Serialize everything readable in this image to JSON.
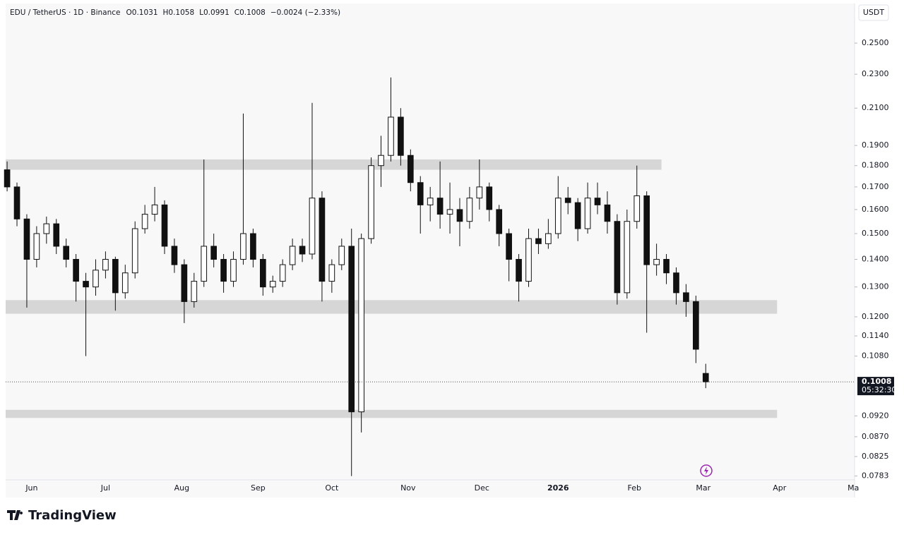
{
  "chart_data": {
    "type": "candlestick",
    "title": "EDU / TetherUS · 1D · Binance",
    "ohlc_text": [
      "O0.1031",
      "H0.1058",
      "L0.0991",
      "C0.1008",
      "−0.0024 (−2.33%)"
    ],
    "currency": "USDT",
    "countdown": "05:32:30",
    "brand": "TradingView",
    "log_scale": true,
    "up_color": "#ffffff",
    "down_color": "#111111",
    "wick_color": "#111111",
    "zone_color": "#d6d6d6",
    "xlim": [
      -10.6,
      334.5
    ],
    "ylim": [
      0.0775,
      0.278
    ],
    "xticks": [
      {
        "value": 0,
        "label": "Jun"
      },
      {
        "value": 30,
        "label": "Jul"
      },
      {
        "value": 61,
        "label": "Aug"
      },
      {
        "value": 92,
        "label": "Sep"
      },
      {
        "value": 122,
        "label": "Oct"
      },
      {
        "value": 153,
        "label": "Nov"
      },
      {
        "value": 183,
        "label": "Dec"
      },
      {
        "value": 214,
        "label": "2026"
      },
      {
        "value": 245,
        "label": "Feb"
      },
      {
        "value": 273,
        "label": "Mar"
      },
      {
        "value": 304,
        "label": "Apr"
      },
      {
        "value": 334,
        "label": "Ma"
      }
    ],
    "yticks": [
      {
        "value": 0.25,
        "label": "0.2500"
      },
      {
        "value": 0.23,
        "label": "0.2300"
      },
      {
        "value": 0.21,
        "label": "0.2100"
      },
      {
        "value": 0.19,
        "label": "0.1900"
      },
      {
        "value": 0.18,
        "label": "0.1800"
      },
      {
        "value": 0.17,
        "label": "0.1700"
      },
      {
        "value": 0.16,
        "label": "0.1600"
      },
      {
        "value": 0.15,
        "label": "0.1500"
      },
      {
        "value": 0.14,
        "label": "0.1400"
      },
      {
        "value": 0.13,
        "label": "0.1300"
      },
      {
        "value": 0.12,
        "label": "0.1200"
      },
      {
        "value": 0.114,
        "label": "0.1140"
      },
      {
        "value": 0.108,
        "label": "0.1080"
      },
      {
        "value": 0.092,
        "label": "0.0920"
      },
      {
        "value": 0.087,
        "label": "0.0870"
      },
      {
        "value": 0.0825,
        "label": "0.0825"
      },
      {
        "value": 0.0783,
        "label": "0.0783"
      }
    ],
    "zones": [
      {
        "low": 0.178,
        "high": 0.183,
        "x_end": 256
      },
      {
        "low": 0.121,
        "high": 0.1255,
        "x_end": 303
      },
      {
        "low": 0.0915,
        "high": 0.0935,
        "x_end": 303
      }
    ],
    "x": [
      -10,
      -6,
      -2,
      2,
      6,
      10,
      14,
      18,
      22,
      26,
      30,
      34,
      38,
      42,
      46,
      50,
      54,
      58,
      62,
      66,
      70,
      74,
      78,
      82,
      86,
      90,
      94,
      98,
      102,
      106,
      110,
      114,
      118,
      122,
      126,
      130,
      134,
      138,
      142,
      146,
      150,
      154,
      158,
      162,
      166,
      170,
      174,
      178,
      182,
      186,
      190,
      194,
      198,
      202,
      206,
      210,
      214,
      218,
      222,
      226,
      230,
      234,
      238,
      242,
      246,
      250,
      254,
      258,
      262,
      266,
      270,
      274
    ],
    "open": [
      0.178,
      0.17,
      0.156,
      0.14,
      0.15,
      0.154,
      0.145,
      0.14,
      0.132,
      0.13,
      0.136,
      0.14,
      0.128,
      0.135,
      0.152,
      0.158,
      0.162,
      0.145,
      0.138,
      0.125,
      0.132,
      0.145,
      0.14,
      0.132,
      0.14,
      0.15,
      0.14,
      0.13,
      0.132,
      0.138,
      0.145,
      0.142,
      0.165,
      0.132,
      0.138,
      0.145,
      0.093,
      0.148,
      0.18,
      0.185,
      0.205,
      0.185,
      0.172,
      0.162,
      0.165,
      0.158,
      0.16,
      0.155,
      0.165,
      0.17,
      0.16,
      0.15,
      0.14,
      0.132,
      0.148,
      0.146,
      0.15,
      0.165,
      0.163,
      0.152,
      0.165,
      0.162,
      0.155,
      0.128,
      0.155,
      0.166,
      0.138,
      0.14,
      0.135,
      0.128,
      0.125,
      0.1031
    ],
    "high": [
      0.182,
      0.172,
      0.158,
      0.153,
      0.157,
      0.156,
      0.148,
      0.142,
      0.135,
      0.14,
      0.143,
      0.141,
      0.138,
      0.155,
      0.162,
      0.17,
      0.164,
      0.148,
      0.14,
      0.135,
      0.183,
      0.15,
      0.142,
      0.143,
      0.207,
      0.152,
      0.142,
      0.134,
      0.14,
      0.148,
      0.148,
      0.213,
      0.168,
      0.14,
      0.148,
      0.152,
      0.15,
      0.184,
      0.195,
      0.228,
      0.21,
      0.188,
      0.175,
      0.17,
      0.182,
      0.172,
      0.165,
      0.17,
      0.183,
      0.172,
      0.162,
      0.152,
      0.142,
      0.152,
      0.152,
      0.156,
      0.175,
      0.17,
      0.165,
      0.172,
      0.172,
      0.168,
      0.158,
      0.16,
      0.18,
      0.168,
      0.146,
      0.142,
      0.137,
      0.131,
      0.127,
      0.1058
    ],
    "low": [
      0.168,
      0.153,
      0.123,
      0.137,
      0.146,
      0.142,
      0.137,
      0.125,
      0.108,
      0.127,
      0.133,
      0.122,
      0.126,
      0.133,
      0.15,
      0.155,
      0.142,
      0.135,
      0.118,
      0.123,
      0.13,
      0.137,
      0.128,
      0.13,
      0.138,
      0.137,
      0.127,
      0.128,
      0.13,
      0.136,
      0.139,
      0.14,
      0.125,
      0.128,
      0.136,
      0.0783,
      0.088,
      0.146,
      0.17,
      0.182,
      0.18,
      0.168,
      0.15,
      0.155,
      0.152,
      0.15,
      0.145,
      0.152,
      0.16,
      0.155,
      0.145,
      0.132,
      0.125,
      0.13,
      0.142,
      0.144,
      0.148,
      0.158,
      0.147,
      0.15,
      0.158,
      0.15,
      0.124,
      0.126,
      0.152,
      0.115,
      0.134,
      0.131,
      0.124,
      0.12,
      0.106,
      0.0991
    ],
    "close": [
      0.17,
      0.156,
      0.14,
      0.15,
      0.154,
      0.145,
      0.14,
      0.132,
      0.13,
      0.136,
      0.14,
      0.128,
      0.135,
      0.152,
      0.158,
      0.162,
      0.145,
      0.138,
      0.125,
      0.132,
      0.145,
      0.14,
      0.132,
      0.14,
      0.15,
      0.14,
      0.13,
      0.132,
      0.138,
      0.145,
      0.142,
      0.165,
      0.132,
      0.138,
      0.145,
      0.093,
      0.148,
      0.18,
      0.185,
      0.205,
      0.185,
      0.172,
      0.162,
      0.165,
      0.158,
      0.16,
      0.155,
      0.165,
      0.17,
      0.16,
      0.15,
      0.14,
      0.132,
      0.148,
      0.146,
      0.15,
      0.165,
      0.163,
      0.152,
      0.165,
      0.162,
      0.155,
      0.128,
      0.155,
      0.166,
      0.138,
      0.14,
      0.135,
      0.128,
      0.125,
      0.11,
      0.1008
    ]
  }
}
